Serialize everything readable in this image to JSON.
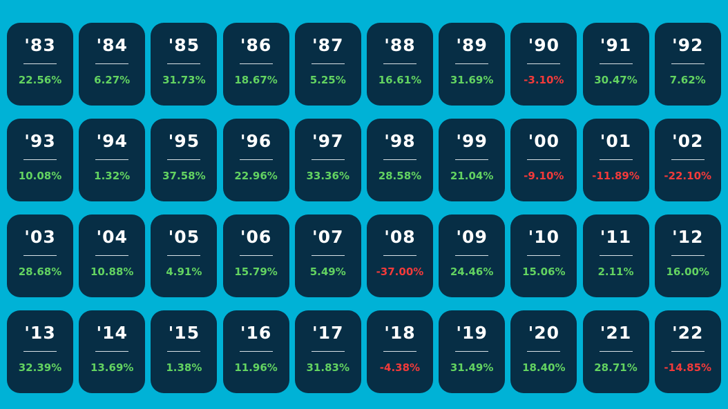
{
  "colors": {
    "background": "#00B2D6",
    "tile": "#072E45",
    "year_text": "#FFFFFF",
    "rule": "#DCE3E8",
    "positive": "#63D361",
    "negative": "#F23A3A"
  },
  "tiles": [
    {
      "year": "'83",
      "return": "22.56%",
      "negative": false
    },
    {
      "year": "'84",
      "return": "6.27%",
      "negative": false
    },
    {
      "year": "'85",
      "return": "31.73%",
      "negative": false
    },
    {
      "year": "'86",
      "return": "18.67%",
      "negative": false
    },
    {
      "year": "'87",
      "return": "5.25%",
      "negative": false
    },
    {
      "year": "'88",
      "return": "16.61%",
      "negative": false
    },
    {
      "year": "'89",
      "return": "31.69%",
      "negative": false
    },
    {
      "year": "'90",
      "return": "-3.10%",
      "negative": true
    },
    {
      "year": "'91",
      "return": "30.47%",
      "negative": false
    },
    {
      "year": "'92",
      "return": "7.62%",
      "negative": false
    },
    {
      "year": "'93",
      "return": "10.08%",
      "negative": false
    },
    {
      "year": "'94",
      "return": "1.32%",
      "negative": false
    },
    {
      "year": "'95",
      "return": "37.58%",
      "negative": false
    },
    {
      "year": "'96",
      "return": "22.96%",
      "negative": false
    },
    {
      "year": "'97",
      "return": "33.36%",
      "negative": false
    },
    {
      "year": "'98",
      "return": "28.58%",
      "negative": false
    },
    {
      "year": "'99",
      "return": "21.04%",
      "negative": false
    },
    {
      "year": "'00",
      "return": "-9.10%",
      "negative": true
    },
    {
      "year": "'01",
      "return": "-11.89%",
      "negative": true
    },
    {
      "year": "'02",
      "return": "-22.10%",
      "negative": true
    },
    {
      "year": "'03",
      "return": "28.68%",
      "negative": false
    },
    {
      "year": "'04",
      "return": "10.88%",
      "negative": false
    },
    {
      "year": "'05",
      "return": "4.91%",
      "negative": false
    },
    {
      "year": "'06",
      "return": "15.79%",
      "negative": false
    },
    {
      "year": "'07",
      "return": "5.49%",
      "negative": false
    },
    {
      "year": "'08",
      "return": "-37.00%",
      "negative": true
    },
    {
      "year": "'09",
      "return": "24.46%",
      "negative": false
    },
    {
      "year": "'10",
      "return": "15.06%",
      "negative": false
    },
    {
      "year": "'11",
      "return": "2.11%",
      "negative": false
    },
    {
      "year": "'12",
      "return": "16.00%",
      "negative": false
    },
    {
      "year": "'13",
      "return": "32.39%",
      "negative": false
    },
    {
      "year": "'14",
      "return": "13.69%",
      "negative": false
    },
    {
      "year": "'15",
      "return": "1.38%",
      "negative": false
    },
    {
      "year": "'16",
      "return": "11.96%",
      "negative": false
    },
    {
      "year": "'17",
      "return": "31.83%",
      "negative": false
    },
    {
      "year": "'18",
      "return": "-4.38%",
      "negative": true
    },
    {
      "year": "'19",
      "return": "31.49%",
      "negative": false
    },
    {
      "year": "'20",
      "return": "18.40%",
      "negative": false
    },
    {
      "year": "'21",
      "return": "28.71%",
      "negative": false
    },
    {
      "year": "'22",
      "return": "-14.85%",
      "negative": true
    }
  ]
}
